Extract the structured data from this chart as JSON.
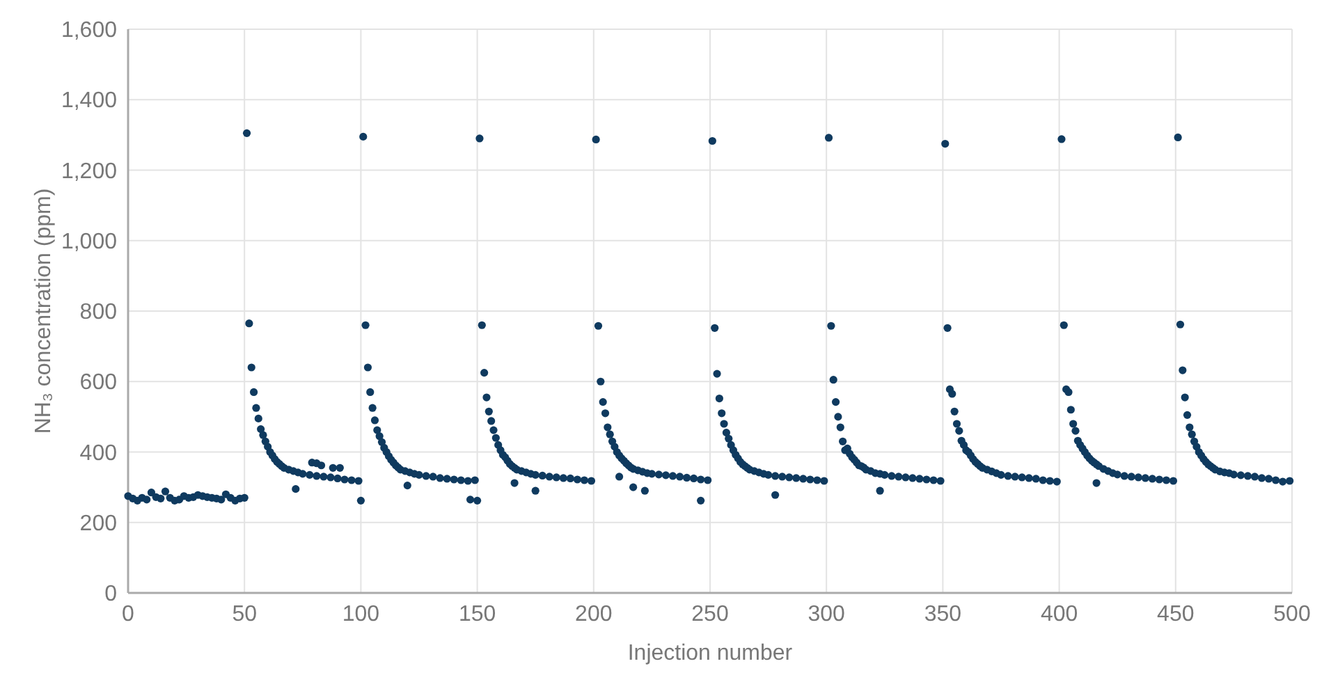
{
  "chart_data": {
    "type": "scatter",
    "xlabel": "Injection number",
    "ylabel": "NH₃ concentration (ppm)",
    "xlim": [
      0,
      500
    ],
    "xticks": [
      0,
      50,
      100,
      150,
      200,
      250,
      300,
      350,
      400,
      450,
      500
    ],
    "ylim": [
      0,
      1600
    ],
    "yticks": [
      {
        "value": 0,
        "label": "0"
      },
      {
        "value": 200,
        "label": "200"
      },
      {
        "value": 400,
        "label": "400"
      },
      {
        "value": 600,
        "label": "600"
      },
      {
        "value": 800,
        "label": "800"
      },
      {
        "value": 1000,
        "label": "1,000"
      },
      {
        "value": 1200,
        "label": "1,200"
      },
      {
        "value": 1400,
        "label": "1,400"
      },
      {
        "value": 1600,
        "label": "1,600"
      }
    ],
    "grid": true,
    "marker": "circle",
    "series": [
      {
        "color": "#0f3a5f",
        "x": [
          0,
          2,
          4,
          6,
          8,
          10,
          12,
          14,
          16,
          18,
          20,
          22,
          24,
          26,
          28,
          30,
          32,
          34,
          36,
          38,
          40,
          42,
          44,
          46,
          48,
          50,
          51,
          52,
          53,
          54,
          55,
          56,
          57,
          58,
          59,
          60,
          61,
          62,
          63,
          64,
          65,
          66,
          67,
          69,
          71,
          73,
          75,
          78,
          81,
          84,
          87,
          90,
          93,
          96,
          99,
          72,
          79,
          81,
          83,
          88,
          91,
          100,
          101,
          102,
          103,
          104,
          105,
          106,
          107,
          108,
          109,
          110,
          111,
          112,
          113,
          114,
          115,
          116,
          117,
          119,
          121,
          123,
          125,
          128,
          131,
          134,
          137,
          140,
          143,
          146,
          149,
          120,
          147,
          150,
          151,
          152,
          153,
          154,
          155,
          156,
          157,
          158,
          159,
          160,
          161,
          162,
          163,
          164,
          165,
          166,
          167,
          169,
          171,
          173,
          175,
          178,
          181,
          184,
          187,
          190,
          193,
          196,
          199,
          166,
          175,
          201,
          202,
          203,
          204,
          205,
          206,
          207,
          208,
          209,
          210,
          211,
          212,
          213,
          214,
          215,
          216,
          217,
          219,
          221,
          223,
          225,
          228,
          231,
          234,
          237,
          240,
          243,
          246,
          249,
          211,
          217,
          222,
          246,
          251,
          252,
          253,
          254,
          255,
          256,
          257,
          258,
          259,
          260,
          261,
          262,
          263,
          264,
          265,
          266,
          267,
          269,
          271,
          273,
          275,
          278,
          281,
          284,
          287,
          290,
          293,
          296,
          299,
          278,
          301,
          302,
          303,
          304,
          305,
          306,
          307,
          308,
          309,
          310,
          311,
          312,
          313,
          314,
          315,
          316,
          317,
          319,
          321,
          323,
          325,
          328,
          331,
          334,
          337,
          340,
          343,
          346,
          349,
          323,
          351,
          352,
          353,
          354,
          355,
          356,
          357,
          358,
          359,
          360,
          361,
          362,
          363,
          364,
          365,
          366,
          367,
          369,
          371,
          373,
          375,
          378,
          381,
          384,
          387,
          390,
          393,
          396,
          399,
          401,
          402,
          403,
          404,
          405,
          406,
          407,
          408,
          409,
          410,
          411,
          412,
          413,
          414,
          415,
          416,
          417,
          419,
          421,
          423,
          425,
          428,
          431,
          434,
          437,
          440,
          443,
          446,
          449,
          416,
          451,
          452,
          453,
          454,
          455,
          456,
          457,
          458,
          459,
          460,
          461,
          462,
          463,
          464,
          465,
          466,
          467,
          469,
          471,
          473,
          475,
          478,
          481,
          484,
          487,
          490,
          493,
          496,
          499
        ],
        "values": [
          275,
          268,
          262,
          270,
          265,
          285,
          272,
          268,
          288,
          270,
          262,
          265,
          275,
          270,
          272,
          278,
          275,
          272,
          270,
          268,
          265,
          280,
          270,
          262,
          268,
          270,
          1305,
          765,
          640,
          570,
          525,
          495,
          465,
          448,
          430,
          415,
          400,
          390,
          380,
          372,
          366,
          360,
          355,
          350,
          346,
          342,
          338,
          335,
          332,
          330,
          328,
          325,
          322,
          320,
          318,
          295,
          370,
          368,
          362,
          355,
          355,
          262,
          1295,
          760,
          640,
          570,
          525,
          490,
          462,
          445,
          428,
          412,
          400,
          388,
          378,
          370,
          362,
          356,
          350,
          346,
          342,
          338,
          335,
          332,
          330,
          326,
          324,
          322,
          320,
          318,
          320,
          305,
          265,
          262,
          1290,
          760,
          625,
          555,
          515,
          488,
          462,
          440,
          420,
          405,
          392,
          385,
          375,
          366,
          360,
          355,
          350,
          346,
          342,
          338,
          335,
          333,
          330,
          328,
          326,
          325,
          322,
          320,
          318,
          312,
          290,
          1287,
          758,
          600,
          542,
          510,
          470,
          450,
          430,
          415,
          400,
          390,
          382,
          375,
          368,
          362,
          356,
          352,
          348,
          344,
          340,
          338,
          336,
          334,
          332,
          330,
          327,
          325,
          322,
          320,
          330,
          300,
          290,
          262,
          1283,
          752,
          622,
          552,
          510,
          480,
          455,
          438,
          420,
          405,
          392,
          382,
          372,
          365,
          360,
          355,
          350,
          346,
          342,
          338,
          335,
          332,
          330,
          328,
          326,
          324,
          322,
          320,
          318,
          278,
          1292,
          758,
          605,
          542,
          500,
          470,
          430,
          405,
          410,
          395,
          385,
          378,
          370,
          362,
          360,
          356,
          350,
          346,
          340,
          338,
          335,
          332,
          330,
          328,
          326,
          324,
          322,
          320,
          318,
          290,
          1275,
          752,
          578,
          565,
          515,
          480,
          460,
          432,
          420,
          405,
          400,
          390,
          380,
          372,
          366,
          360,
          355,
          350,
          345,
          340,
          335,
          332,
          330,
          328,
          326,
          324,
          320,
          318,
          316,
          1288,
          760,
          578,
          570,
          520,
          480,
          460,
          432,
          420,
          410,
          400,
          390,
          382,
          375,
          370,
          365,
          360,
          352,
          346,
          340,
          336,
          332,
          330,
          328,
          326,
          324,
          322,
          320,
          318,
          312,
          1293,
          762,
          632,
          555,
          505,
          470,
          450,
          430,
          415,
          400,
          390,
          380,
          372,
          365,
          360,
          355,
          350,
          345,
          342,
          340,
          336,
          334,
          332,
          330,
          326,
          324,
          320,
          316,
          318
        ]
      }
    ]
  }
}
